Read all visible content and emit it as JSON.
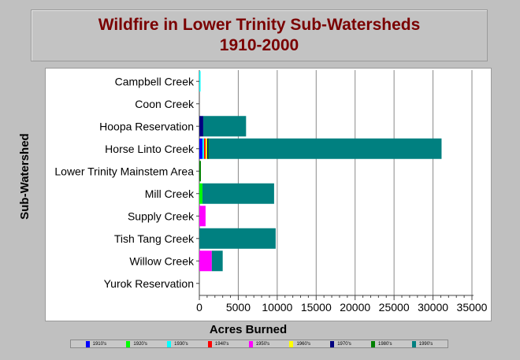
{
  "chart_data": {
    "type": "bar",
    "orientation": "horizontal",
    "stacked": true,
    "title": "Wildfire in Lower Trinity Sub-Watersheds",
    "subtitle": "1910-2000",
    "xlabel": "Acres Burned",
    "ylabel": "Sub-Watershed",
    "xlim": [
      0,
      35000
    ],
    "xticks": [
      "0",
      "5000",
      "10000",
      "15000",
      "20000",
      "25000",
      "30000",
      "35000"
    ],
    "grid": true,
    "legend_position": "bottom",
    "categories": [
      "Campbell Creek",
      "Coon Creek",
      "Hoopa Reservation",
      "Horse Linto Creek",
      "Lower Trinity Mainstem Area",
      "Mill Creek",
      "Supply Creek",
      "Tish Tang Creek",
      "Willow Creek",
      "Yurok Reservation"
    ],
    "series": [
      {
        "name": "1910's",
        "color": "#0000ff",
        "values": [
          0,
          0,
          0,
          400,
          0,
          0,
          0,
          0,
          0,
          0
        ]
      },
      {
        "name": "1920's",
        "color": "#00ff00",
        "values": [
          0,
          0,
          0,
          0,
          0,
          400,
          0,
          0,
          0,
          0
        ]
      },
      {
        "name": "1930's",
        "color": "#00ffff",
        "values": [
          150,
          0,
          0,
          200,
          0,
          0,
          0,
          0,
          0,
          0
        ]
      },
      {
        "name": "1940's",
        "color": "#ff0000",
        "values": [
          0,
          0,
          0,
          200,
          0,
          0,
          0,
          0,
          0,
          0
        ]
      },
      {
        "name": "1950's",
        "color": "#ff00ff",
        "values": [
          0,
          0,
          0,
          0,
          0,
          0,
          800,
          0,
          1600,
          0
        ]
      },
      {
        "name": "1960's",
        "color": "#ffff00",
        "values": [
          0,
          0,
          0,
          200,
          0,
          0,
          0,
          0,
          0,
          0
        ]
      },
      {
        "name": "1970's",
        "color": "#000080",
        "values": [
          0,
          0,
          500,
          100,
          0,
          0,
          0,
          0,
          0,
          0
        ]
      },
      {
        "name": "1980's",
        "color": "#008000",
        "values": [
          0,
          0,
          0,
          100,
          200,
          0,
          0,
          0,
          0,
          0
        ]
      },
      {
        "name": "1990's",
        "color": "#008080",
        "values": [
          0,
          0,
          5500,
          29900,
          0,
          9200,
          0,
          9800,
          1400,
          0
        ]
      }
    ]
  }
}
